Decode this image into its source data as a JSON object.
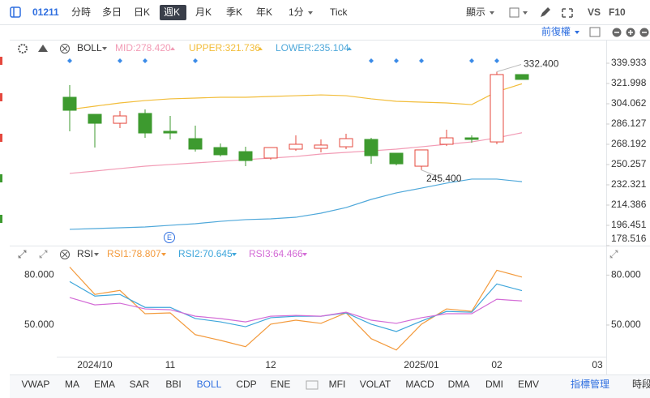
{
  "toolbar": {
    "symbol": "01211",
    "periods": [
      "分時",
      "多日",
      "日K",
      "週K",
      "月K",
      "季K",
      "年K",
      "1分",
      "Tick"
    ],
    "display": "顯示",
    "vs": "VS",
    "f10": "F10"
  },
  "adjust": "前復權",
  "chart_data": [
    {
      "type": "candlestick",
      "indicator": "BOLL",
      "open": [
        309.8,
        294.7,
        286.8,
        295.5,
        279.7,
        273.2,
        265.3,
        261.7,
        256.0,
        263.9,
        264.6,
        266.0,
        272.5,
        260.3,
        248.8,
        268.2,
        273.9,
        270.3,
        329.9,
        null,
        null,
        null
      ],
      "high": [
        320.6,
        294.7,
        297.6,
        299.0,
        293.3,
        284.7,
        268.9,
        266.0,
        265.3,
        276.1,
        272.5,
        277.5,
        273.9,
        260.3,
        263.2,
        281.1,
        276.1,
        332.4,
        329.9,
        null,
        null,
        null
      ],
      "low": [
        279.7,
        265.3,
        282.5,
        273.9,
        272.5,
        261.7,
        257.4,
        248.8,
        254.6,
        262.4,
        261.0,
        263.9,
        250.9,
        249.5,
        245.4,
        266.7,
        269.6,
        268.2,
        325.6,
        null,
        null,
        null
      ],
      "close": [
        298.3,
        286.8,
        293.3,
        278.2,
        278.2,
        263.9,
        258.9,
        253.8,
        265.3,
        268.2,
        267.5,
        273.2,
        258.1,
        250.9,
        263.2,
        273.9,
        272.5,
        329.9,
        325.6,
        null,
        null,
        null
      ],
      "up_color": "#e5483e",
      "down_color": "#3d9a2f",
      "series": [
        {
          "name": "MID:278.420",
          "color": "#f29bb5",
          "values": [
            242.4,
            244.5,
            246.7,
            248.8,
            250.3,
            251.7,
            253.1,
            254.6,
            256.0,
            257.4,
            259.6,
            261.0,
            262.4,
            263.9,
            266.0,
            268.2,
            270.3,
            273.9,
            278.42,
            null,
            null,
            null
          ]
        },
        {
          "name": "UPPER:321.736",
          "color": "#f2bd3a",
          "values": [
            299.0,
            301.9,
            304.8,
            306.9,
            308.4,
            309.1,
            309.8,
            309.8,
            310.5,
            311.2,
            311.9,
            311.2,
            308.4,
            306.2,
            305.5,
            304.8,
            303.3,
            314.8,
            321.736,
            null,
            null,
            null
          ]
        },
        {
          "name": "LOWER:235.104",
          "color": "#4fa8da",
          "values": [
            192.9,
            193.6,
            194.3,
            195.0,
            196.5,
            197.9,
            200.0,
            201.5,
            202.2,
            203.6,
            207.2,
            212.2,
            219.4,
            225.2,
            229.4,
            233.8,
            237.4,
            237.4,
            235.104,
            null,
            null,
            null
          ]
        }
      ],
      "ylim": [
        178.516,
        339.933
      ],
      "yticks": [
        339.933,
        321.998,
        304.062,
        286.127,
        268.192,
        250.257,
        232.321,
        214.386,
        196.451,
        178.516
      ],
      "annotations": [
        {
          "text": "332.400"
        },
        {
          "text": "245.400"
        }
      ]
    },
    {
      "type": "line",
      "indicator": "RSI",
      "categories": [
        null,
        "2024/10",
        null,
        null,
        "11",
        null,
        null,
        null,
        "12",
        null,
        null,
        null,
        null,
        null,
        "2025/01",
        null,
        null,
        "02",
        null,
        null,
        null,
        "03"
      ],
      "series": [
        {
          "name": "RSI1:78.807",
          "color": "#f39a3c",
          "values": [
            84.8,
            68.4,
            70.8,
            56.8,
            57.3,
            44.2,
            40.8,
            37.0,
            50.5,
            52.9,
            51.0,
            57.3,
            41.8,
            35.0,
            50.5,
            59.7,
            58.2,
            82.9,
            78.807,
            null,
            null,
            null
          ]
        },
        {
          "name": "RSI2:70.645",
          "color": "#3ea6db",
          "values": [
            76.1,
            67.4,
            68.4,
            60.6,
            60.6,
            53.9,
            51.9,
            49.0,
            54.4,
            55.3,
            55.3,
            57.3,
            50.5,
            46.1,
            52.4,
            58.2,
            57.7,
            74.7,
            70.645,
            null,
            null,
            null
          ]
        },
        {
          "name": "RSI3:64.466",
          "color": "#d36bd6",
          "values": [
            66.5,
            62.1,
            63.1,
            59.7,
            59.2,
            55.3,
            53.9,
            51.9,
            55.3,
            55.8,
            55.3,
            57.7,
            52.9,
            51.0,
            54.4,
            56.8,
            56.8,
            65.5,
            64.466,
            null,
            null,
            null
          ]
        }
      ],
      "ylim": [
        31,
        87
      ],
      "yticks": [
        {
          "value": 80,
          "label": "80.000"
        },
        {
          "value": 50,
          "label": "50.000"
        }
      ]
    }
  ],
  "event_marker": "E",
  "indicator_tabs": [
    "VWAP",
    "MA",
    "EMA",
    "SAR",
    "BBI",
    "BOLL",
    "CDP",
    "ENE",
    "MFI",
    "VOLAT",
    "MACD",
    "DMA",
    "DMI",
    "EMV"
  ],
  "manage": "指標管理",
  "period_label": "時段"
}
